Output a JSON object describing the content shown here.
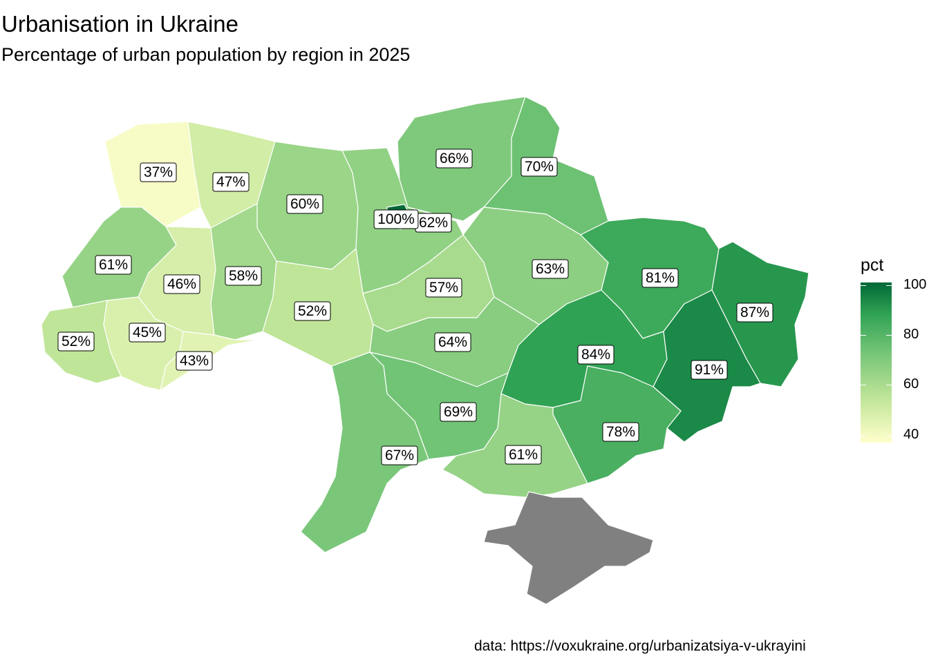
{
  "title": "Urbanisation in Ukraine",
  "subtitle": "Percentage of urban population by region in 2025",
  "caption": "data: https://voxukraine.org/urbanizatsiya-v-ukrayini",
  "legend": {
    "title": "pct",
    "ticks": [
      "100",
      "80",
      "60",
      "40"
    ],
    "scale": [
      "#FFFFCC",
      "#C2E699",
      "#78C679",
      "#31A354",
      "#006837"
    ],
    "range": [
      35,
      100
    ]
  },
  "no_data_color": "#808080",
  "regions": [
    {
      "id": "volyn",
      "label": "37%",
      "pct": 37
    },
    {
      "id": "rivne",
      "label": "47%",
      "pct": 47
    },
    {
      "id": "zhytomyr",
      "label": "60%",
      "pct": 60
    },
    {
      "id": "kyiv-oblast",
      "label": "62%",
      "pct": 62
    },
    {
      "id": "kyiv-city",
      "label": "100%",
      "pct": 100
    },
    {
      "id": "chernihiv",
      "label": "66%",
      "pct": 66
    },
    {
      "id": "sumy",
      "label": "70%",
      "pct": 70
    },
    {
      "id": "lviv",
      "label": "61%",
      "pct": 61
    },
    {
      "id": "ternopil",
      "label": "46%",
      "pct": 46
    },
    {
      "id": "khmelnytskyi",
      "label": "58%",
      "pct": 58
    },
    {
      "id": "vinnytsia",
      "label": "52%",
      "pct": 52
    },
    {
      "id": "cherkasy",
      "label": "57%",
      "pct": 57
    },
    {
      "id": "poltava",
      "label": "63%",
      "pct": 63
    },
    {
      "id": "kharkiv",
      "label": "81%",
      "pct": 81
    },
    {
      "id": "luhansk",
      "label": "87%",
      "pct": 87
    },
    {
      "id": "zakarpattia",
      "label": "52%",
      "pct": 52
    },
    {
      "id": "ivano-frankivsk",
      "label": "45%",
      "pct": 45
    },
    {
      "id": "chernivtsi",
      "label": "43%",
      "pct": 43
    },
    {
      "id": "kirovohrad",
      "label": "64%",
      "pct": 64
    },
    {
      "id": "dnipropetrovsk",
      "label": "84%",
      "pct": 84
    },
    {
      "id": "donetsk",
      "label": "91%",
      "pct": 91
    },
    {
      "id": "mykolaiv",
      "label": "69%",
      "pct": 69
    },
    {
      "id": "zaporizhzhia",
      "label": "78%",
      "pct": 78
    },
    {
      "id": "odesa",
      "label": "67%",
      "pct": 67
    },
    {
      "id": "kherson",
      "label": "61%",
      "pct": 61
    },
    {
      "id": "crimea",
      "label": "",
      "pct": null
    }
  ]
}
